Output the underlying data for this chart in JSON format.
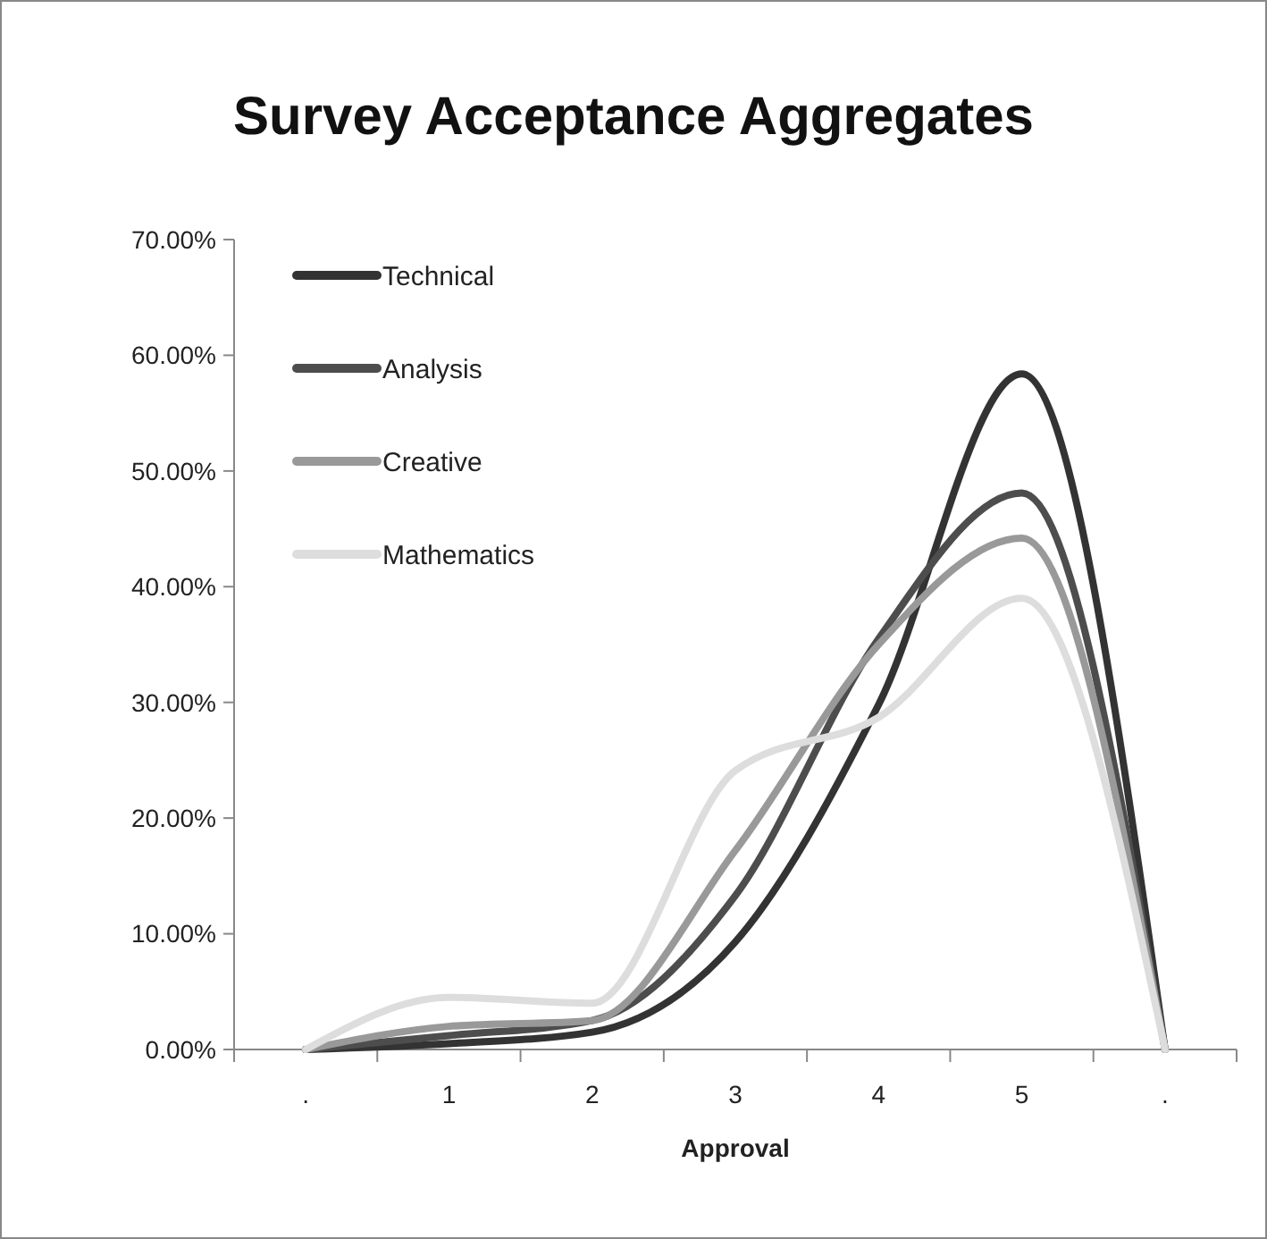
{
  "chart_data": {
    "type": "line",
    "title": "Survey Acceptance Aggregates",
    "xlabel": "Approval",
    "categories": [
      ".",
      "1",
      "2",
      "3",
      "4",
      "5",
      "."
    ],
    "series": [
      {
        "name": "Technical",
        "color": "#333333",
        "values": [
          0,
          0.5,
          1.5,
          9.3,
          29.8,
          58.4,
          0
        ]
      },
      {
        "name": "Analysis",
        "color": "#4d4d4d",
        "values": [
          0,
          1.2,
          2.5,
          13.3,
          35.5,
          48.1,
          0
        ]
      },
      {
        "name": "Creative",
        "color": "#999999",
        "values": [
          0,
          2,
          2.5,
          17.2,
          35,
          44.2,
          0
        ]
      },
      {
        "name": "Mathematics",
        "color": "#dddddd",
        "values": [
          0,
          4.5,
          4,
          24.1,
          28.7,
          39,
          0
        ]
      }
    ],
    "ylim": [
      0,
      70
    ],
    "yticks": [
      {
        "value": 0,
        "label": "0.00%"
      },
      {
        "value": 10,
        "label": "10.00%"
      },
      {
        "value": 20,
        "label": "20.00%"
      },
      {
        "value": 30,
        "label": "30.00%"
      },
      {
        "value": 40,
        "label": "40.00%"
      },
      {
        "value": 50,
        "label": "50.00%"
      },
      {
        "value": 60,
        "label": "60.00%"
      },
      {
        "value": 70,
        "label": "70.00%"
      }
    ],
    "grid": false,
    "legend": "top left",
    "marker": "none",
    "line_style": "solid"
  }
}
